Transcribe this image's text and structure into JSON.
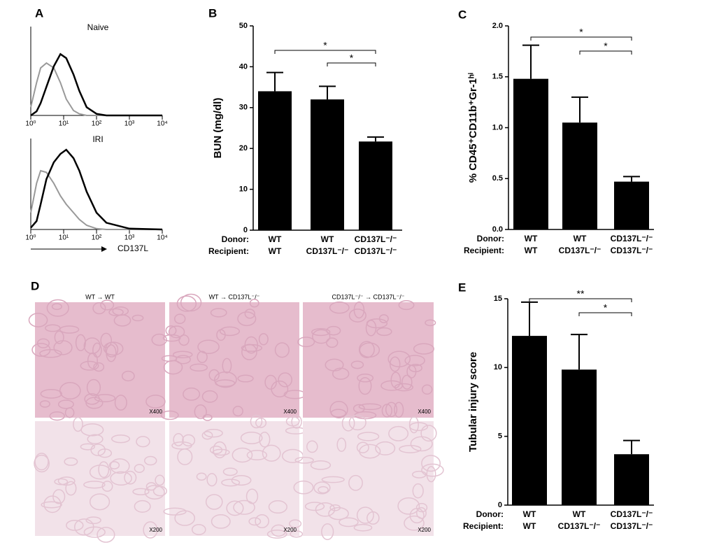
{
  "chart_data": [
    {
      "type": "line",
      "panel": "A",
      "title": "Naive",
      "log_x": true,
      "xlim": [
        1,
        10000
      ],
      "xticks": [
        {
          "value": 1,
          "label": "10⁰"
        },
        {
          "value": 10,
          "label": "10¹"
        },
        {
          "value": 100,
          "label": "10²"
        },
        {
          "value": 1000,
          "label": "10³"
        },
        {
          "value": 10000,
          "label": "10⁴"
        }
      ],
      "ylim": [
        0,
        100
      ],
      "x": [
        1,
        1.5,
        2,
        3,
        5,
        8,
        12,
        20,
        30,
        50,
        100,
        200,
        1000,
        10000
      ],
      "series": [
        {
          "color": "#999999",
          "values": [
            10,
            40,
            58,
            64,
            58,
            40,
            20,
            6,
            2,
            0,
            0,
            0,
            0,
            0
          ]
        },
        {
          "color": "#000000",
          "values": [
            0,
            5,
            15,
            35,
            60,
            75,
            70,
            50,
            30,
            10,
            2,
            0,
            0,
            0
          ]
        }
      ]
    },
    {
      "type": "line",
      "title": "IRI",
      "log_x": true,
      "xlabel": "CD137L",
      "xlim": [
        1,
        10000
      ],
      "xticks": [
        {
          "value": 1,
          "label": "10⁰"
        },
        {
          "value": 10,
          "label": "10¹"
        },
        {
          "value": 100,
          "label": "10²"
        },
        {
          "value": 1000,
          "label": "10³"
        },
        {
          "value": 10000,
          "label": "10⁴"
        }
      ],
      "ylim": [
        0,
        100
      ],
      "x": [
        1,
        1.5,
        2,
        3,
        5,
        8,
        12,
        20,
        30,
        50,
        100,
        200,
        1000,
        10000
      ],
      "series": [
        {
          "color": "#999999",
          "values": [
            20,
            55,
            70,
            68,
            55,
            40,
            30,
            20,
            12,
            5,
            1,
            0,
            0,
            0
          ]
        },
        {
          "color": "#000000",
          "values": [
            2,
            10,
            30,
            60,
            80,
            90,
            95,
            85,
            70,
            45,
            20,
            8,
            1,
            0
          ]
        }
      ]
    },
    {
      "type": "bar",
      "panel": "B",
      "ylabel": "BUN (mg/dl)",
      "color": "#000000",
      "category_rows": [
        {
          "name": "Donor:",
          "labels": [
            "WT",
            "WT",
            "CD137L⁻/⁻"
          ]
        },
        {
          "name": "Recipient:",
          "labels": [
            "WT",
            "CD137L⁻/⁻",
            "CD137L⁻/⁻"
          ]
        }
      ],
      "values": [
        34,
        32,
        21.7
      ],
      "errors": [
        4.6,
        3.2,
        1.1
      ],
      "ylim": [
        0,
        50
      ],
      "yticks": [
        0,
        10,
        20,
        30,
        40,
        50
      ],
      "significance": [
        {
          "text": "*",
          "between": [
            0,
            2
          ]
        },
        {
          "text": "*",
          "between": [
            1,
            2
          ]
        }
      ]
    },
    {
      "type": "bar",
      "panel": "C",
      "ylabel": "% CD45⁺CD11b⁺Gr-1ʰⁱ",
      "color": "#000000",
      "category_rows": [
        {
          "name": "Donor:",
          "labels": [
            "WT",
            "WT",
            "CD137L⁻/⁻"
          ]
        },
        {
          "name": "Recipient:",
          "labels": [
            "WT",
            "CD137L⁻/⁻",
            "CD137L⁻/⁻"
          ]
        }
      ],
      "values": [
        1.48,
        1.05,
        0.47
      ],
      "errors": [
        0.33,
        0.25,
        0.05
      ],
      "ylim": [
        0,
        2
      ],
      "yticks": [
        {
          "value": 0,
          "label": "0.0"
        },
        {
          "value": 0.5,
          "label": "0.5"
        },
        {
          "value": 1,
          "label": "1.0"
        },
        {
          "value": 1.5,
          "label": "1.5"
        },
        {
          "value": 2,
          "label": "2.0"
        }
      ],
      "significance": [
        {
          "text": "*",
          "between": [
            0,
            2
          ]
        },
        {
          "text": "*",
          "between": [
            1,
            2
          ]
        }
      ]
    },
    {
      "type": "bar",
      "panel": "E",
      "ylabel": "Tubular injury score",
      "color": "#000000",
      "category_rows": [
        {
          "name": "Donor:",
          "labels": [
            "WT",
            "WT",
            "CD137L⁻/⁻"
          ]
        },
        {
          "name": "Recipient:",
          "labels": [
            "WT",
            "CD137L⁻/⁻",
            "CD137L⁻/⁻"
          ]
        }
      ],
      "values": [
        12.3,
        9.85,
        3.7
      ],
      "errors": [
        2.45,
        2.55,
        1.0
      ],
      "ylim": [
        0,
        15
      ],
      "yticks": [
        0,
        5,
        10,
        15
      ],
      "significance": [
        {
          "text": "**",
          "between": [
            0,
            2
          ]
        },
        {
          "text": "*",
          "between": [
            1,
            2
          ]
        }
      ]
    }
  ],
  "panel_d": {
    "panel": "D",
    "columns": [
      "WT → WT",
      "WT → CD137L⁻/⁻",
      "CD137L⁻/⁻ → CD137L⁻/⁻"
    ],
    "magnifications": [
      "X400",
      "X200"
    ]
  }
}
